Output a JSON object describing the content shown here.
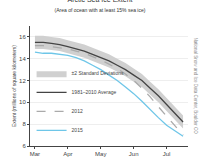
{
  "chart_data": {
    "type": "line",
    "title": "Arctic Sea Ice Extent",
    "subtitle": "(Area of ocean with at least 15% sea ice)",
    "ylabel": "Extent (millions of square kilometers)",
    "annotations": [
      "National Snow and Ice Data Center, Boulder CO"
    ],
    "x": [
      0,
      0.25,
      0.5,
      0.75,
      1.0,
      1.25,
      1.5,
      1.75,
      2.0,
      2.25,
      2.5,
      2.75,
      3.0,
      3.25,
      3.5,
      3.75,
      4.0,
      4.25,
      4.5
    ],
    "series": [
      {
        "name": "2015",
        "type": "line",
        "color": "#6ec6e8",
        "line_style": "solid",
        "values": [
          14.6,
          14.5,
          14.5,
          14.4,
          14.3,
          14.1,
          13.8,
          13.4,
          13.0,
          12.5,
          12.0,
          11.4,
          10.8,
          10.1,
          9.3,
          8.6,
          7.9,
          7.4,
          6.9
        ]
      },
      {
        "name": "2012",
        "type": "line",
        "color": "#aaaaaa",
        "line_style": "dashed",
        "values": [
          15.2,
          15.2,
          15.1,
          15.0,
          14.9,
          14.7,
          14.5,
          14.2,
          13.9,
          13.5,
          13.1,
          12.6,
          12.0,
          11.3,
          10.5,
          9.6,
          8.7,
          7.8,
          7.0
        ]
      },
      {
        "name": "1981–2010 Average",
        "type": "line",
        "color": "#444444",
        "line_style": "solid",
        "values": [
          15.5,
          15.5,
          15.4,
          15.3,
          15.1,
          14.9,
          14.7,
          14.4,
          14.1,
          13.8,
          13.4,
          13.0,
          12.5,
          12.0,
          11.3,
          10.6,
          9.8,
          9.0,
          8.2
        ]
      },
      {
        "name": "±2 Standard Deviations",
        "type": "band",
        "color": "#d0d0d0",
        "upper": [
          16.1,
          16.1,
          16.0,
          15.9,
          15.7,
          15.5,
          15.3,
          15.0,
          14.7,
          14.4,
          14.0,
          13.6,
          13.1,
          12.6,
          11.9,
          11.2,
          10.4,
          9.6,
          8.8
        ],
        "lower": [
          14.9,
          14.9,
          14.8,
          14.7,
          14.5,
          14.3,
          14.1,
          13.8,
          13.5,
          13.2,
          12.8,
          12.4,
          11.9,
          11.4,
          10.7,
          10.0,
          9.2,
          8.4,
          7.6
        ]
      }
    ],
    "xlim": [
      -0.15,
      4.65
    ],
    "xticks": [
      {
        "value": 0,
        "label": "Mar"
      },
      {
        "value": 1,
        "label": "Apr"
      },
      {
        "value": 2,
        "label": "May"
      },
      {
        "value": 3,
        "label": "Jun"
      },
      {
        "value": 4,
        "label": "Jul"
      }
    ],
    "ylim": [
      6,
      17
    ],
    "yticks": [
      6,
      8,
      10,
      12,
      14,
      16
    ],
    "grid": true,
    "legend": "lower left"
  }
}
